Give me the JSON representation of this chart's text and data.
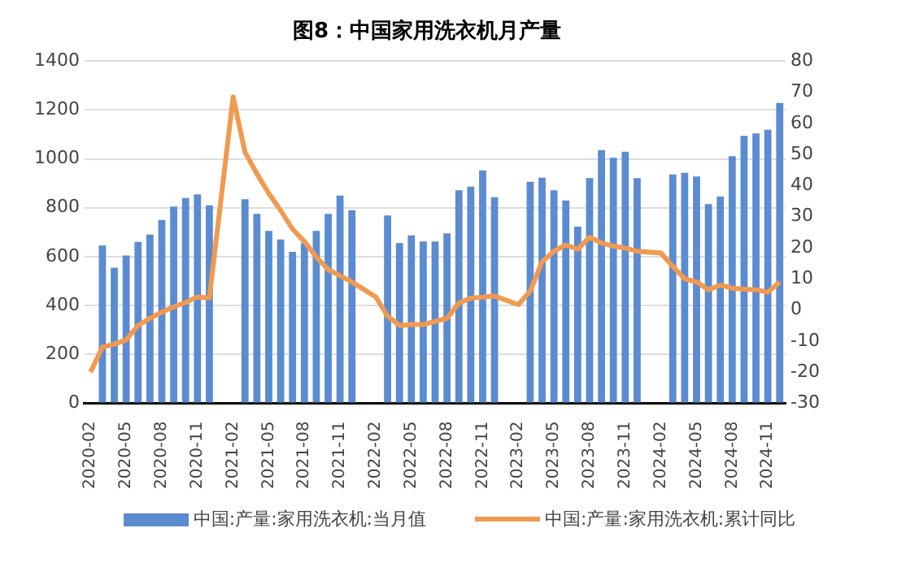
{
  "chart_data": {
    "type": "bar",
    "title": "图8：中国家用洗衣机月产量",
    "categories": [
      "2020-02",
      null,
      null,
      "2020-05",
      null,
      null,
      "2020-08",
      null,
      null,
      "2020-11",
      null,
      null,
      "2021-02",
      null,
      null,
      "2021-05",
      null,
      null,
      "2021-08",
      null,
      null,
      "2021-11",
      null,
      null,
      "2022-02",
      null,
      null,
      "2022-05",
      null,
      null,
      "2022-08",
      null,
      null,
      "2022-11",
      null,
      null,
      "2023-02",
      null,
      null,
      "2023-05",
      null,
      null,
      "2023-08",
      null,
      null,
      "2023-11",
      null,
      null,
      "2024-02",
      null,
      null,
      "2024-05",
      null,
      null,
      "2024-08",
      null,
      null,
      "2024-11",
      null
    ],
    "series": [
      {
        "name": "中国:产量:家用洗衣机:当月值",
        "color": "#5b8bd0",
        "values": [
          null,
          645,
          555,
          605,
          660,
          690,
          750,
          805,
          840,
          855,
          810,
          null,
          null,
          835,
          775,
          705,
          670,
          620,
          655,
          705,
          775,
          850,
          790,
          null,
          null,
          768,
          655,
          687,
          662,
          662,
          695,
          871,
          886,
          953,
          843,
          null,
          null,
          906,
          923,
          871,
          830,
          723,
          921,
          1036,
          1004,
          1029,
          921,
          null,
          null,
          936,
          943,
          928,
          815,
          846,
          1011,
          1094,
          1104,
          1119,
          1229
        ]
      },
      {
        "name": "中国:产量:家用洗衣机:累计同比",
        "type": "line",
        "axis": "y2",
        "color": "#f09a50",
        "values": [
          -20,
          -12,
          -11,
          -9.6,
          -5,
          -2.7,
          -0.7,
          1,
          2.4,
          4.2,
          3.8,
          null,
          68.5,
          50.7,
          43.8,
          37.5,
          32,
          26,
          22,
          17,
          13,
          11,
          9,
          null,
          4.2,
          -2,
          -5,
          -4.7,
          -4.7,
          -3.7,
          -2.7,
          2.2,
          3.8,
          4.1,
          4.5,
          null,
          1.7,
          6,
          15.5,
          18.9,
          20.9,
          19.5,
          23.4,
          21.5,
          20.5,
          19.9,
          18.9,
          null,
          18.3,
          14,
          10,
          9,
          6.5,
          8,
          7,
          6.7,
          6.5,
          5.7,
          9
        ]
      }
    ],
    "ylim": [
      0,
      1400
    ],
    "yticks": [
      0,
      200,
      400,
      600,
      800,
      1000,
      1200,
      1400
    ],
    "y2lim": [
      -30,
      80
    ],
    "y2ticks": [
      -30,
      -20,
      -10,
      0,
      10,
      20,
      30,
      40,
      50,
      60,
      70,
      80
    ],
    "grid": "y",
    "legend": "bottom"
  }
}
